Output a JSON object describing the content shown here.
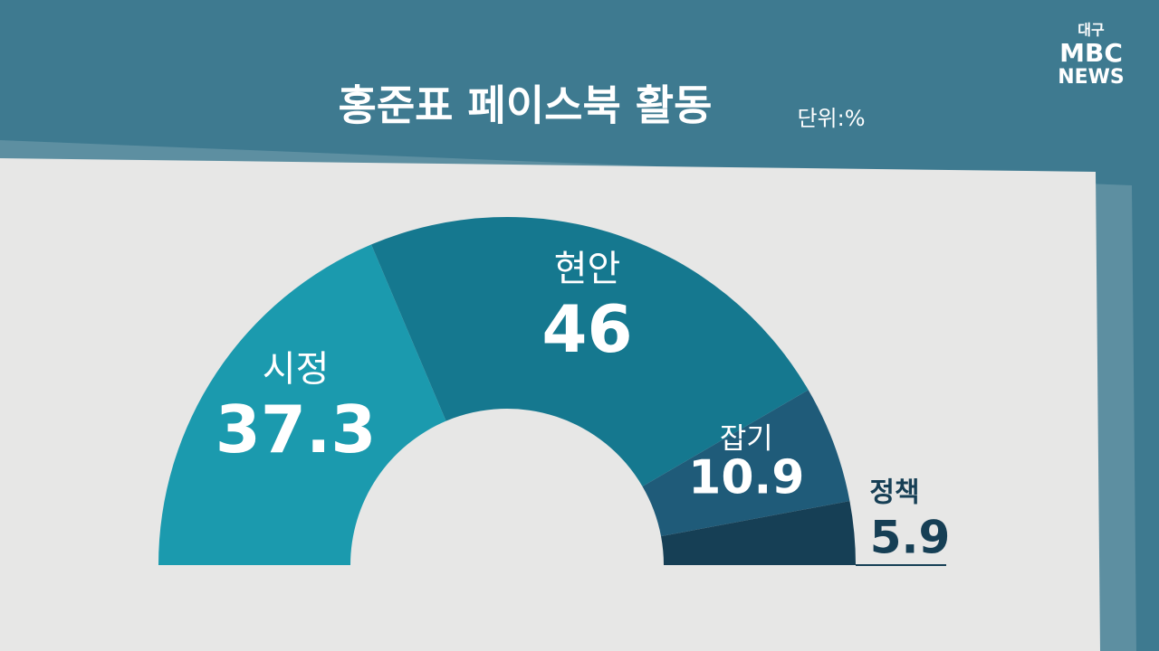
{
  "logo": {
    "region": "대구",
    "brand": "MBC",
    "sub": "NEWS"
  },
  "chart_data": {
    "type": "half_donut",
    "title": "홍준표 페이스북 활동",
    "unit": "단위:%",
    "categories": [
      "시정",
      "현안",
      "잡기",
      "정책"
    ],
    "values": [
      37.3,
      46,
      10.9,
      5.9
    ],
    "colors": [
      "#1b9aae",
      "#15788f",
      "#1f5b79",
      "#163f55"
    ]
  }
}
